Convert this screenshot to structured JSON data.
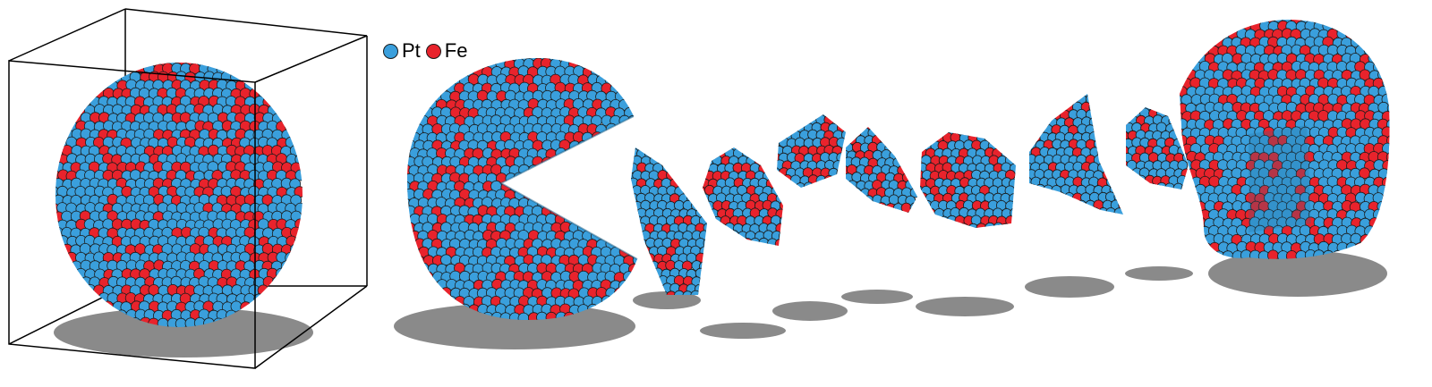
{
  "legend": {
    "items": [
      {
        "label": "Pt",
        "color": "#3a9fdc"
      },
      {
        "label": "Fe",
        "color": "#e8232c"
      }
    ]
  },
  "colors": {
    "pt": "#3a9fdc",
    "fe": "#e8232c",
    "shadow": "#8a8a8a",
    "box": "#000000",
    "outline": "#1b1b1b"
  },
  "components": {
    "full_particle": "nanoparticle-in-simulation-box",
    "cutaway": "nanoparticle-cross-section-cutaway",
    "slices": "atomic-layer-slices",
    "inner_view": "nanoparticle-interior-view"
  }
}
